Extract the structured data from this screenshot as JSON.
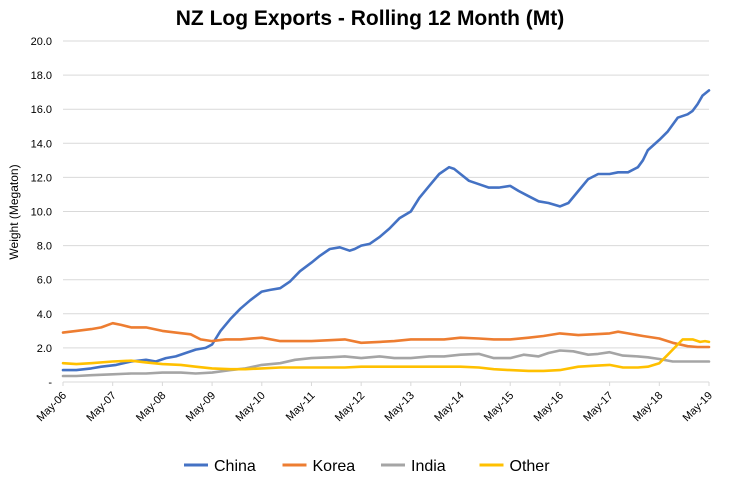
{
  "chart_data": {
    "type": "line",
    "title": "NZ Log Exports - Rolling 12 Month (Mt)",
    "ylabel": "Weight (Megaton)",
    "xlabel": "",
    "ylim": [
      0,
      20
    ],
    "ytick_values": [
      0,
      2,
      4,
      6,
      8,
      10,
      12,
      14,
      16,
      18,
      20
    ],
    "ytick_labels": [
      "-",
      "2.0",
      "4.0",
      "6.0",
      "8.0",
      "10.0",
      "12.0",
      "14.0",
      "16.0",
      "18.0",
      "20.0"
    ],
    "xtick_labels": [
      "May-06",
      "May-07",
      "May-08",
      "May-09",
      "May-10",
      "May-11",
      "May-12",
      "May-13",
      "May-14",
      "May-15",
      "May-16",
      "May-17",
      "May-18",
      "May-19"
    ],
    "x_range": [
      2006.33,
      2019.33
    ],
    "grid": true,
    "legend_position": "bottom",
    "series": [
      {
        "name": "China",
        "color": "#4472c4",
        "points": [
          [
            2006.33,
            0.7
          ],
          [
            2006.6,
            0.7
          ],
          [
            2006.9,
            0.8
          ],
          [
            2007.1,
            0.9
          ],
          [
            2007.4,
            1.0
          ],
          [
            2007.7,
            1.2
          ],
          [
            2008.0,
            1.3
          ],
          [
            2008.2,
            1.2
          ],
          [
            2008.4,
            1.4
          ],
          [
            2008.6,
            1.5
          ],
          [
            2008.8,
            1.7
          ],
          [
            2009.0,
            1.9
          ],
          [
            2009.2,
            2.0
          ],
          [
            2009.33,
            2.2
          ],
          [
            2009.5,
            3.0
          ],
          [
            2009.7,
            3.7
          ],
          [
            2009.9,
            4.3
          ],
          [
            2010.1,
            4.8
          ],
          [
            2010.33,
            5.3
          ],
          [
            2010.5,
            5.4
          ],
          [
            2010.7,
            5.5
          ],
          [
            2010.9,
            5.9
          ],
          [
            2011.1,
            6.5
          ],
          [
            2011.33,
            7.0
          ],
          [
            2011.5,
            7.4
          ],
          [
            2011.7,
            7.8
          ],
          [
            2011.9,
            7.9
          ],
          [
            2012.1,
            7.7
          ],
          [
            2012.2,
            7.8
          ],
          [
            2012.33,
            8.0
          ],
          [
            2012.5,
            8.1
          ],
          [
            2012.7,
            8.5
          ],
          [
            2012.9,
            9.0
          ],
          [
            2013.1,
            9.6
          ],
          [
            2013.33,
            10.0
          ],
          [
            2013.5,
            10.8
          ],
          [
            2013.7,
            11.5
          ],
          [
            2013.9,
            12.2
          ],
          [
            2014.1,
            12.6
          ],
          [
            2014.2,
            12.5
          ],
          [
            2014.33,
            12.2
          ],
          [
            2014.5,
            11.8
          ],
          [
            2014.7,
            11.6
          ],
          [
            2014.9,
            11.4
          ],
          [
            2015.1,
            11.4
          ],
          [
            2015.33,
            11.5
          ],
          [
            2015.5,
            11.2
          ],
          [
            2015.7,
            10.9
          ],
          [
            2015.9,
            10.6
          ],
          [
            2016.1,
            10.5
          ],
          [
            2016.33,
            10.3
          ],
          [
            2016.5,
            10.5
          ],
          [
            2016.7,
            11.2
          ],
          [
            2016.9,
            11.9
          ],
          [
            2017.1,
            12.2
          ],
          [
            2017.33,
            12.2
          ],
          [
            2017.5,
            12.3
          ],
          [
            2017.7,
            12.3
          ],
          [
            2017.9,
            12.6
          ],
          [
            2018.0,
            13.0
          ],
          [
            2018.1,
            13.6
          ],
          [
            2018.33,
            14.2
          ],
          [
            2018.5,
            14.7
          ],
          [
            2018.7,
            15.5
          ],
          [
            2018.9,
            15.7
          ],
          [
            2019.0,
            15.9
          ],
          [
            2019.1,
            16.3
          ],
          [
            2019.2,
            16.8
          ],
          [
            2019.33,
            17.1
          ]
        ]
      },
      {
        "name": "Korea",
        "color": "#ed7d31",
        "points": [
          [
            2006.33,
            2.9
          ],
          [
            2006.6,
            3.0
          ],
          [
            2006.9,
            3.1
          ],
          [
            2007.1,
            3.2
          ],
          [
            2007.33,
            3.45
          ],
          [
            2007.5,
            3.35
          ],
          [
            2007.7,
            3.2
          ],
          [
            2008.0,
            3.2
          ],
          [
            2008.33,
            3.0
          ],
          [
            2008.6,
            2.9
          ],
          [
            2008.9,
            2.8
          ],
          [
            2009.1,
            2.5
          ],
          [
            2009.33,
            2.4
          ],
          [
            2009.6,
            2.5
          ],
          [
            2009.9,
            2.5
          ],
          [
            2010.33,
            2.6
          ],
          [
            2010.7,
            2.4
          ],
          [
            2011.0,
            2.4
          ],
          [
            2011.33,
            2.4
          ],
          [
            2011.7,
            2.45
          ],
          [
            2012.0,
            2.5
          ],
          [
            2012.33,
            2.3
          ],
          [
            2012.7,
            2.35
          ],
          [
            2013.0,
            2.4
          ],
          [
            2013.33,
            2.5
          ],
          [
            2013.7,
            2.5
          ],
          [
            2014.0,
            2.5
          ],
          [
            2014.33,
            2.6
          ],
          [
            2014.7,
            2.55
          ],
          [
            2015.0,
            2.5
          ],
          [
            2015.33,
            2.5
          ],
          [
            2015.7,
            2.6
          ],
          [
            2016.0,
            2.7
          ],
          [
            2016.33,
            2.85
          ],
          [
            2016.7,
            2.75
          ],
          [
            2017.0,
            2.8
          ],
          [
            2017.33,
            2.85
          ],
          [
            2017.5,
            2.95
          ],
          [
            2017.7,
            2.85
          ],
          [
            2018.0,
            2.7
          ],
          [
            2018.33,
            2.55
          ],
          [
            2018.6,
            2.3
          ],
          [
            2018.9,
            2.1
          ],
          [
            2019.1,
            2.05
          ],
          [
            2019.33,
            2.05
          ]
        ]
      },
      {
        "name": "India",
        "color": "#a5a5a5",
        "points": [
          [
            2006.33,
            0.35
          ],
          [
            2006.6,
            0.35
          ],
          [
            2006.9,
            0.4
          ],
          [
            2007.33,
            0.45
          ],
          [
            2007.7,
            0.5
          ],
          [
            2008.0,
            0.5
          ],
          [
            2008.33,
            0.55
          ],
          [
            2008.7,
            0.55
          ],
          [
            2009.0,
            0.5
          ],
          [
            2009.33,
            0.55
          ],
          [
            2009.7,
            0.7
          ],
          [
            2010.0,
            0.8
          ],
          [
            2010.33,
            1.0
          ],
          [
            2010.7,
            1.1
          ],
          [
            2011.0,
            1.3
          ],
          [
            2011.33,
            1.4
          ],
          [
            2011.7,
            1.45
          ],
          [
            2012.0,
            1.5
          ],
          [
            2012.33,
            1.4
          ],
          [
            2012.7,
            1.5
          ],
          [
            2013.0,
            1.4
          ],
          [
            2013.33,
            1.4
          ],
          [
            2013.7,
            1.5
          ],
          [
            2014.0,
            1.5
          ],
          [
            2014.33,
            1.6
          ],
          [
            2014.7,
            1.65
          ],
          [
            2015.0,
            1.4
          ],
          [
            2015.33,
            1.4
          ],
          [
            2015.6,
            1.6
          ],
          [
            2015.9,
            1.5
          ],
          [
            2016.1,
            1.7
          ],
          [
            2016.33,
            1.85
          ],
          [
            2016.6,
            1.8
          ],
          [
            2016.9,
            1.6
          ],
          [
            2017.1,
            1.65
          ],
          [
            2017.33,
            1.75
          ],
          [
            2017.6,
            1.55
          ],
          [
            2017.9,
            1.5
          ],
          [
            2018.1,
            1.45
          ],
          [
            2018.33,
            1.35
          ],
          [
            2018.6,
            1.2
          ],
          [
            2018.9,
            1.2
          ],
          [
            2019.1,
            1.2
          ],
          [
            2019.33,
            1.2
          ]
        ]
      },
      {
        "name": "Other",
        "color": "#ffc000",
        "points": [
          [
            2006.33,
            1.1
          ],
          [
            2006.6,
            1.05
          ],
          [
            2006.9,
            1.1
          ],
          [
            2007.33,
            1.2
          ],
          [
            2007.7,
            1.25
          ],
          [
            2008.0,
            1.15
          ],
          [
            2008.33,
            1.05
          ],
          [
            2008.7,
            1.0
          ],
          [
            2009.0,
            0.9
          ],
          [
            2009.33,
            0.8
          ],
          [
            2009.7,
            0.75
          ],
          [
            2010.0,
            0.75
          ],
          [
            2010.33,
            0.8
          ],
          [
            2010.7,
            0.85
          ],
          [
            2011.0,
            0.85
          ],
          [
            2011.33,
            0.85
          ],
          [
            2011.7,
            0.85
          ],
          [
            2012.0,
            0.85
          ],
          [
            2012.33,
            0.9
          ],
          [
            2012.7,
            0.9
          ],
          [
            2013.0,
            0.9
          ],
          [
            2013.33,
            0.9
          ],
          [
            2013.7,
            0.9
          ],
          [
            2014.0,
            0.9
          ],
          [
            2014.33,
            0.9
          ],
          [
            2014.7,
            0.85
          ],
          [
            2015.0,
            0.75
          ],
          [
            2015.33,
            0.7
          ],
          [
            2015.7,
            0.65
          ],
          [
            2016.0,
            0.65
          ],
          [
            2016.33,
            0.7
          ],
          [
            2016.7,
            0.9
          ],
          [
            2017.0,
            0.95
          ],
          [
            2017.33,
            1.0
          ],
          [
            2017.6,
            0.85
          ],
          [
            2017.9,
            0.85
          ],
          [
            2018.1,
            0.9
          ],
          [
            2018.33,
            1.1
          ],
          [
            2018.5,
            1.6
          ],
          [
            2018.7,
            2.2
          ],
          [
            2018.8,
            2.5
          ],
          [
            2019.0,
            2.5
          ],
          [
            2019.15,
            2.35
          ],
          [
            2019.25,
            2.4
          ],
          [
            2019.33,
            2.35
          ]
        ]
      }
    ]
  }
}
